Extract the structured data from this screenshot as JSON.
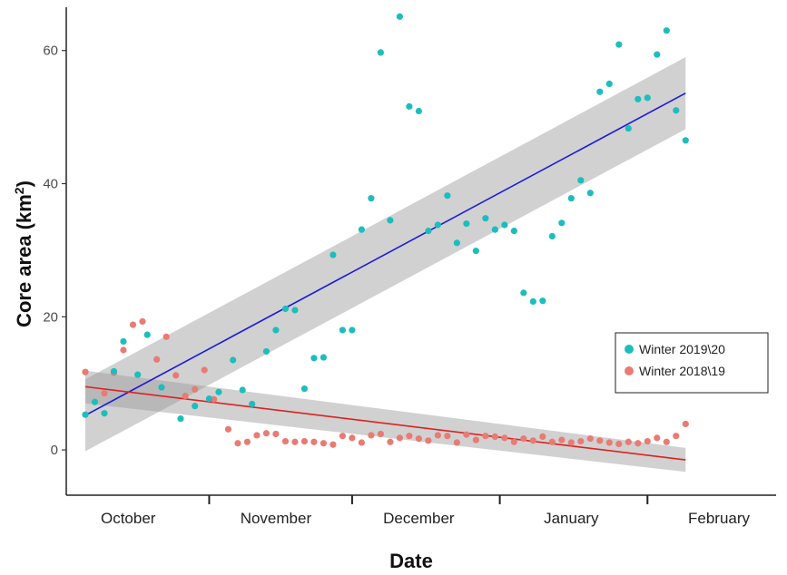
{
  "chart_data": {
    "type": "scatter",
    "xlabel": "Date",
    "ylabel": "Core area (km²)",
    "ylim": [
      -6.8,
      66.5
    ],
    "xlim": [
      "2019-10-01",
      "2020-02-27"
    ],
    "y_ticks": [
      0,
      20,
      40,
      60
    ],
    "x_ticks": [
      {
        "date": "2019-10-31",
        "label": ""
      },
      {
        "date": "2019-11-30",
        "label": ""
      },
      {
        "date": "2019-12-31",
        "label": ""
      },
      {
        "date": "2020-01-31",
        "label": ""
      }
    ],
    "x_month_labels": [
      {
        "date": "2019-10-14",
        "label": "October"
      },
      {
        "date": "2019-11-14",
        "label": "November"
      },
      {
        "date": "2019-12-14",
        "label": "December"
      },
      {
        "date": "2020-01-15",
        "label": "January"
      },
      {
        "date": "2020-02-15",
        "label": "February"
      }
    ],
    "grid": false,
    "legend_position": "right",
    "series": [
      {
        "name": "Winter 2019\\20",
        "color": "#1ebdbd",
        "points": [
          [
            "2019-10-05",
            5.3
          ],
          [
            "2019-10-07",
            7.2
          ],
          [
            "2019-10-09",
            5.5
          ],
          [
            "2019-10-11",
            11.8
          ],
          [
            "2019-10-13",
            16.3
          ],
          [
            "2019-10-16",
            11.3
          ],
          [
            "2019-10-18",
            17.3
          ],
          [
            "2019-10-21",
            9.4
          ],
          [
            "2019-10-25",
            4.7
          ],
          [
            "2019-10-28",
            6.6
          ],
          [
            "2019-10-31",
            7.7
          ],
          [
            "2019-11-02",
            8.7
          ],
          [
            "2019-11-05",
            13.5
          ],
          [
            "2019-11-07",
            9.0
          ],
          [
            "2019-11-09",
            6.9
          ],
          [
            "2019-11-12",
            14.8
          ],
          [
            "2019-11-14",
            18.0
          ],
          [
            "2019-11-16",
            21.2
          ],
          [
            "2019-11-18",
            21.0
          ],
          [
            "2019-11-20",
            9.2
          ],
          [
            "2019-11-22",
            13.8
          ],
          [
            "2019-11-24",
            13.9
          ],
          [
            "2019-11-26",
            29.3
          ],
          [
            "2019-11-28",
            18.0
          ],
          [
            "2019-11-30",
            18.0
          ],
          [
            "2019-12-02",
            33.1
          ],
          [
            "2019-12-04",
            37.8
          ],
          [
            "2019-12-06",
            59.7
          ],
          [
            "2019-12-08",
            34.5
          ],
          [
            "2019-12-10",
            65.1
          ],
          [
            "2019-12-12",
            51.6
          ],
          [
            "2019-12-14",
            50.9
          ],
          [
            "2019-12-16",
            32.9
          ],
          [
            "2019-12-18",
            33.8
          ],
          [
            "2019-12-20",
            38.2
          ],
          [
            "2019-12-22",
            31.1
          ],
          [
            "2019-12-24",
            34.0
          ],
          [
            "2019-12-26",
            29.9
          ],
          [
            "2019-12-28",
            34.8
          ],
          [
            "2019-12-30",
            33.1
          ],
          [
            "2020-01-01",
            33.8
          ],
          [
            "2020-01-03",
            32.9
          ],
          [
            "2020-01-05",
            23.6
          ],
          [
            "2020-01-07",
            22.3
          ],
          [
            "2020-01-09",
            22.4
          ],
          [
            "2020-01-11",
            32.1
          ],
          [
            "2020-01-13",
            34.1
          ],
          [
            "2020-01-15",
            37.8
          ],
          [
            "2020-01-17",
            40.5
          ],
          [
            "2020-01-19",
            38.6
          ],
          [
            "2020-01-21",
            53.8
          ],
          [
            "2020-01-23",
            55.0
          ],
          [
            "2020-01-25",
            60.9
          ],
          [
            "2020-01-27",
            48.3
          ],
          [
            "2020-01-29",
            52.7
          ],
          [
            "2020-01-31",
            52.9
          ],
          [
            "2020-02-02",
            59.4
          ],
          [
            "2020-02-04",
            63.0
          ],
          [
            "2020-02-06",
            51.0
          ],
          [
            "2020-02-08",
            46.5
          ]
        ],
        "trend": {
          "from": [
            "2019-10-05",
            5.2
          ],
          "to": [
            "2020-02-08",
            53.6
          ],
          "color": "#1a1adb"
        },
        "ci": {
          "from": [
            -0.2,
            10.6
          ],
          "to": [
            48.2,
            59.0
          ]
        }
      },
      {
        "name": "Winter 2018\\19",
        "color": "#e87b74",
        "points": [
          [
            "2019-10-05",
            11.7
          ],
          [
            "2019-10-09",
            8.5
          ],
          [
            "2019-10-11",
            11.6
          ],
          [
            "2019-10-13",
            15.0
          ],
          [
            "2019-10-15",
            18.8
          ],
          [
            "2019-10-17",
            19.3
          ],
          [
            "2019-10-20",
            13.6
          ],
          [
            "2019-10-22",
            17.0
          ],
          [
            "2019-10-24",
            11.2
          ],
          [
            "2019-10-26",
            8.1
          ],
          [
            "2019-10-28",
            9.1
          ],
          [
            "2019-10-30",
            12.0
          ],
          [
            "2019-11-01",
            7.6
          ],
          [
            "2019-11-04",
            3.1
          ],
          [
            "2019-11-06",
            1.0
          ],
          [
            "2019-11-08",
            1.2
          ],
          [
            "2019-11-10",
            2.2
          ],
          [
            "2019-11-12",
            2.5
          ],
          [
            "2019-11-14",
            2.4
          ],
          [
            "2019-11-16",
            1.3
          ],
          [
            "2019-11-18",
            1.2
          ],
          [
            "2019-11-20",
            1.3
          ],
          [
            "2019-11-22",
            1.2
          ],
          [
            "2019-11-24",
            1.0
          ],
          [
            "2019-11-26",
            0.8
          ],
          [
            "2019-11-28",
            2.1
          ],
          [
            "2019-11-30",
            1.8
          ],
          [
            "2019-12-02",
            1.1
          ],
          [
            "2019-12-04",
            2.2
          ],
          [
            "2019-12-06",
            2.4
          ],
          [
            "2019-12-08",
            1.2
          ],
          [
            "2019-12-10",
            1.8
          ],
          [
            "2019-12-12",
            2.1
          ],
          [
            "2019-12-14",
            1.7
          ],
          [
            "2019-12-16",
            1.4
          ],
          [
            "2019-12-18",
            2.2
          ],
          [
            "2019-12-20",
            2.1
          ],
          [
            "2019-12-22",
            1.1
          ],
          [
            "2019-12-24",
            2.3
          ],
          [
            "2019-12-26",
            1.5
          ],
          [
            "2019-12-28",
            2.1
          ],
          [
            "2019-12-30",
            2.0
          ],
          [
            "2020-01-01",
            1.8
          ],
          [
            "2020-01-03",
            1.2
          ],
          [
            "2020-01-05",
            1.7
          ],
          [
            "2020-01-07",
            1.4
          ],
          [
            "2020-01-09",
            2.0
          ],
          [
            "2020-01-11",
            1.2
          ],
          [
            "2020-01-13",
            1.5
          ],
          [
            "2020-01-15",
            1.1
          ],
          [
            "2020-01-17",
            1.3
          ],
          [
            "2020-01-19",
            1.7
          ],
          [
            "2020-01-21",
            1.4
          ],
          [
            "2020-01-23",
            1.1
          ],
          [
            "2020-01-25",
            0.9
          ],
          [
            "2020-01-27",
            1.2
          ],
          [
            "2020-01-29",
            1.0
          ],
          [
            "2020-01-31",
            1.3
          ],
          [
            "2020-02-02",
            1.8
          ],
          [
            "2020-02-04",
            1.2
          ],
          [
            "2020-02-06",
            2.1
          ],
          [
            "2020-02-08",
            3.9
          ]
        ],
        "trend": {
          "from": [
            "2019-10-05",
            9.5
          ],
          "to": [
            "2020-02-08",
            -1.5
          ],
          "color": "#e02020"
        },
        "ci": {
          "from": [
            7.0,
            11.9
          ],
          "to": [
            -3.3,
            0.3
          ]
        }
      }
    ]
  }
}
